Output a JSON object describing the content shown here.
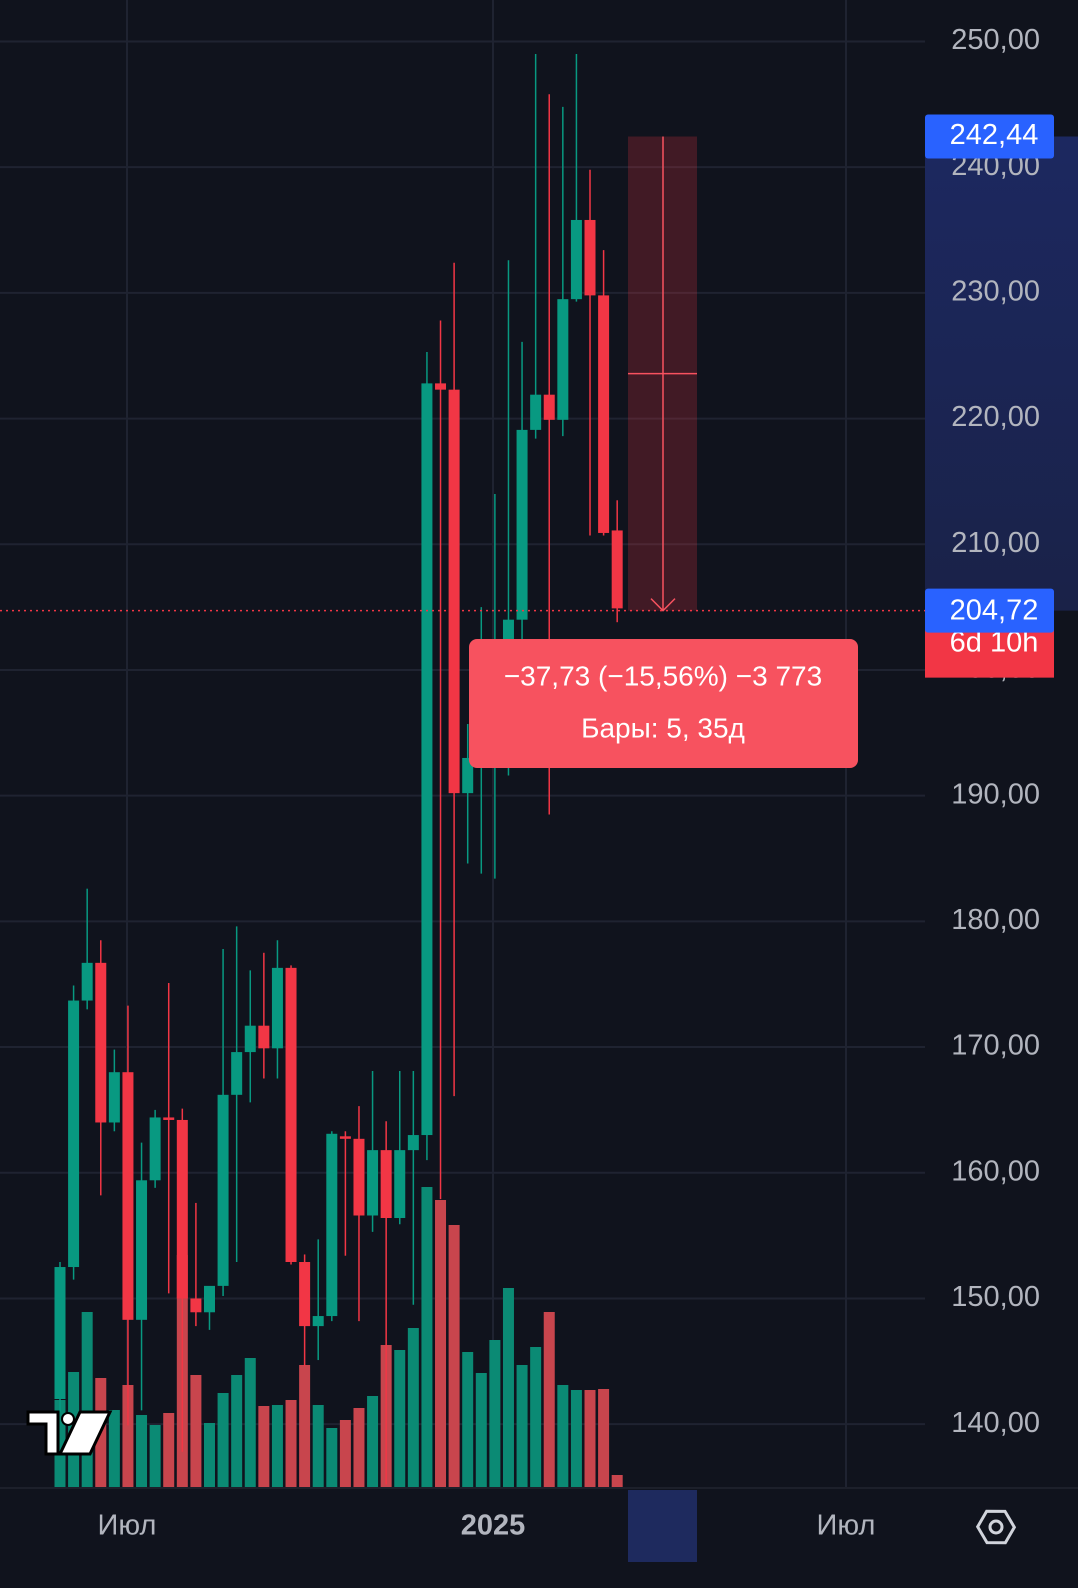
{
  "chart_data": {
    "type": "candlestick",
    "ylim": [
      135,
      253.3
    ],
    "yticks": [
      {
        "value": 250,
        "label": "250,00"
      },
      {
        "value": 240,
        "label": "240,00"
      },
      {
        "value": 230,
        "label": "230,00"
      },
      {
        "value": 220,
        "label": "220,00"
      },
      {
        "value": 210,
        "label": "210,00"
      },
      {
        "value": 200,
        "label": "200,00"
      },
      {
        "value": 190,
        "label": "190,00"
      },
      {
        "value": 180,
        "label": "180,00"
      },
      {
        "value": 170,
        "label": "170,00"
      },
      {
        "value": 160,
        "label": "160,00"
      },
      {
        "value": 150,
        "label": "150,00"
      },
      {
        "value": 140,
        "label": "140,00"
      }
    ],
    "x_labels": [
      "Июл",
      "2025",
      "Июл"
    ],
    "grid": true,
    "up_color": "#089981",
    "down_color": "#f23645",
    "volume_up_color": "#0b8a74",
    "volume_down_color": "#c8454d",
    "open": [
      142,
      152.5,
      173.7,
      176.7,
      164,
      168,
      148.3,
      159.4,
      164.4,
      164.2,
      150,
      148.9,
      151,
      166.2,
      169.6,
      171.7,
      169.9,
      176.3,
      152.9,
      147.8,
      148.6,
      162.9,
      162.7,
      156.6,
      161.8,
      156.4,
      161.8,
      163,
      222.8,
      222.3,
      190.2,
      193,
      196,
      198,
      204,
      219.1,
      221.9,
      219.9,
      229.5,
      235.8,
      229.8,
      211.1
    ],
    "high": [
      152.9,
      174.9,
      182.6,
      178.5,
      169.8,
      173.3,
      162.4,
      165,
      175.1,
      165.1,
      157.6,
      150.8,
      177.8,
      179.6,
      176.1,
      177.5,
      178.5,
      176.5,
      153.5,
      154.7,
      163.3,
      163.3,
      165.3,
      168.1,
      164.1,
      168.1,
      168.1,
      225.3,
      227.8,
      232.4,
      195.7,
      205,
      214,
      232.6,
      226.1,
      249,
      245.8,
      244.8,
      249,
      239.8,
      233.4,
      213.5
    ],
    "low": [
      141,
      151.5,
      173,
      158.2,
      163.3,
      139.9,
      141.1,
      158.8,
      150.4,
      137.8,
      147.8,
      147.5,
      150.2,
      152.9,
      165.6,
      167.5,
      167.5,
      152.7,
      144.6,
      145.1,
      148.2,
      153.4,
      148.2,
      155.3,
      135.2,
      155.9,
      149.5,
      161,
      157.9,
      166.1,
      184.6,
      183.8,
      183.4,
      191.6,
      198.4,
      218.4,
      188.5,
      218.6,
      229.3,
      210.7,
      210.7,
      203.8
    ],
    "close": [
      152.5,
      173.7,
      176.7,
      164,
      168,
      148.3,
      159.4,
      164.4,
      164.2,
      150,
      148.9,
      151,
      166.2,
      169.6,
      171.7,
      169.9,
      176.3,
      152.9,
      147.8,
      148.6,
      163.1,
      162.7,
      156.6,
      161.8,
      156.4,
      161.8,
      163,
      222.8,
      222.3,
      190.2,
      193,
      196,
      198,
      204,
      219.1,
      221.9,
      219.9,
      229.5,
      235.8,
      229.8,
      210.9,
      204.9
    ],
    "volume": [
      87,
      115,
      175,
      109,
      77,
      102,
      72,
      62,
      74,
      232,
      112,
      64,
      94,
      112,
      129,
      81,
      82,
      87,
      122,
      82,
      59,
      67,
      79,
      91,
      142,
      137,
      159,
      300,
      287,
      262,
      135,
      114,
      147,
      199,
      122,
      140,
      175,
      102,
      97,
      97,
      98,
      12
    ],
    "last_price": {
      "value": 204.72,
      "label": "204,72"
    },
    "countdown": "6d 10h",
    "measure_start": {
      "value": 242.44,
      "label": "242,44"
    },
    "measure_change": "−37,73 (−15,56%) −3 773",
    "measure_bars": "Бары: 5, 35д"
  }
}
